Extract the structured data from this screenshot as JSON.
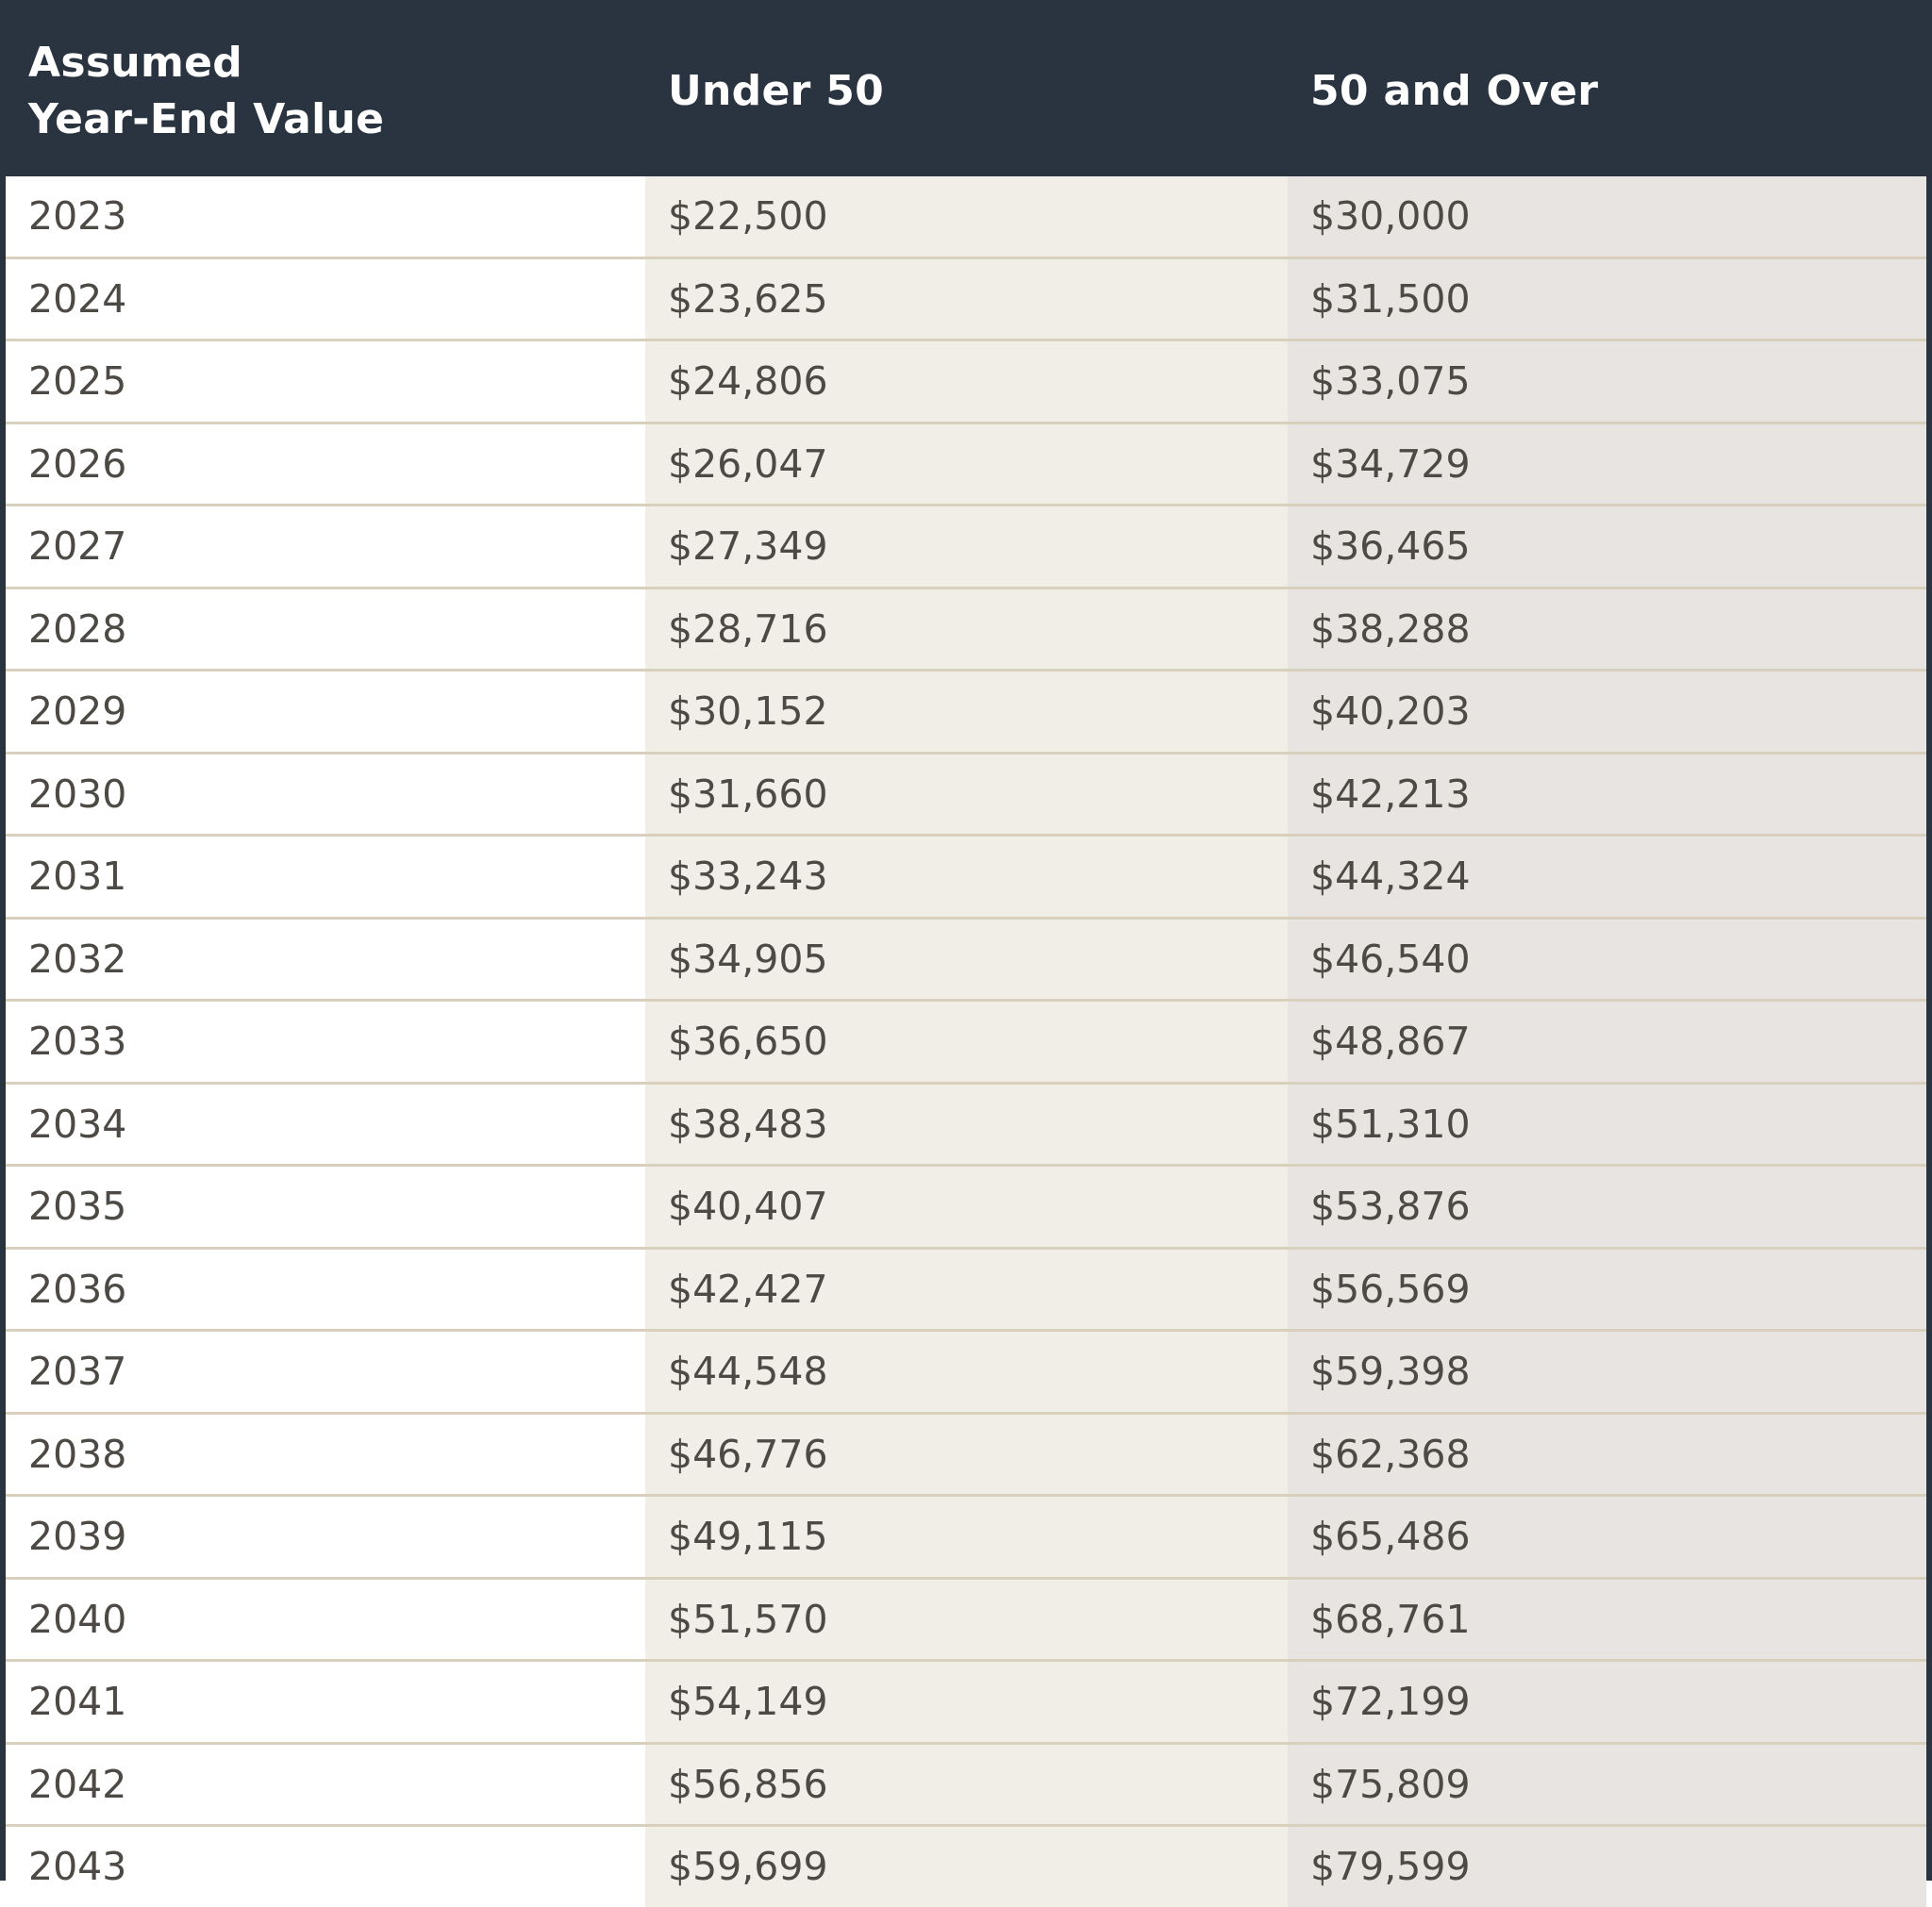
{
  "table": {
    "headers": {
      "year_line1": "Assumed",
      "year_line2": "Year-End Value",
      "under": "Under 50",
      "over": "50 and Over"
    },
    "rows": [
      {
        "year": "2023",
        "under": "$22,500",
        "over": "$30,000"
      },
      {
        "year": "2024",
        "under": "$23,625",
        "over": "$31,500"
      },
      {
        "year": "2025",
        "under": "$24,806",
        "over": "$33,075"
      },
      {
        "year": "2026",
        "under": "$26,047",
        "over": "$34,729"
      },
      {
        "year": "2027",
        "under": "$27,349",
        "over": "$36,465"
      },
      {
        "year": "2028",
        "under": "$28,716",
        "over": "$38,288"
      },
      {
        "year": "2029",
        "under": "$30,152",
        "over": "$40,203"
      },
      {
        "year": "2030",
        "under": "$31,660",
        "over": "$42,213"
      },
      {
        "year": "2031",
        "under": "$33,243",
        "over": "$44,324"
      },
      {
        "year": "2032",
        "under": "$34,905",
        "over": "$46,540"
      },
      {
        "year": "2033",
        "under": "$36,650",
        "over": "$48,867"
      },
      {
        "year": "2034",
        "under": "$38,483",
        "over": "$51,310"
      },
      {
        "year": "2035",
        "under": "$40,407",
        "over": "$53,876"
      },
      {
        "year": "2036",
        "under": "$42,427",
        "over": "$56,569"
      },
      {
        "year": "2037",
        "under": "$44,548",
        "over": "$59,398"
      },
      {
        "year": "2038",
        "under": "$46,776",
        "over": "$62,368"
      },
      {
        "year": "2039",
        "under": "$49,115",
        "over": "$65,486"
      },
      {
        "year": "2040",
        "under": "$51,570",
        "over": "$68,761"
      },
      {
        "year": "2041",
        "under": "$54,149",
        "over": "$72,199"
      },
      {
        "year": "2042",
        "under": "$56,856",
        "over": "$75,809"
      },
      {
        "year": "2043",
        "under": "$59,699",
        "over": "$79,599"
      }
    ]
  },
  "colors": {
    "header_bg": "#2a3441",
    "header_text": "#ffffff",
    "year_col_bg": "#ffffff",
    "under_col_bg": "#f1eee8",
    "over_col_bg": "#e8e4e1",
    "row_divider": "#d8cfbd",
    "body_text": "#4d4a45"
  }
}
